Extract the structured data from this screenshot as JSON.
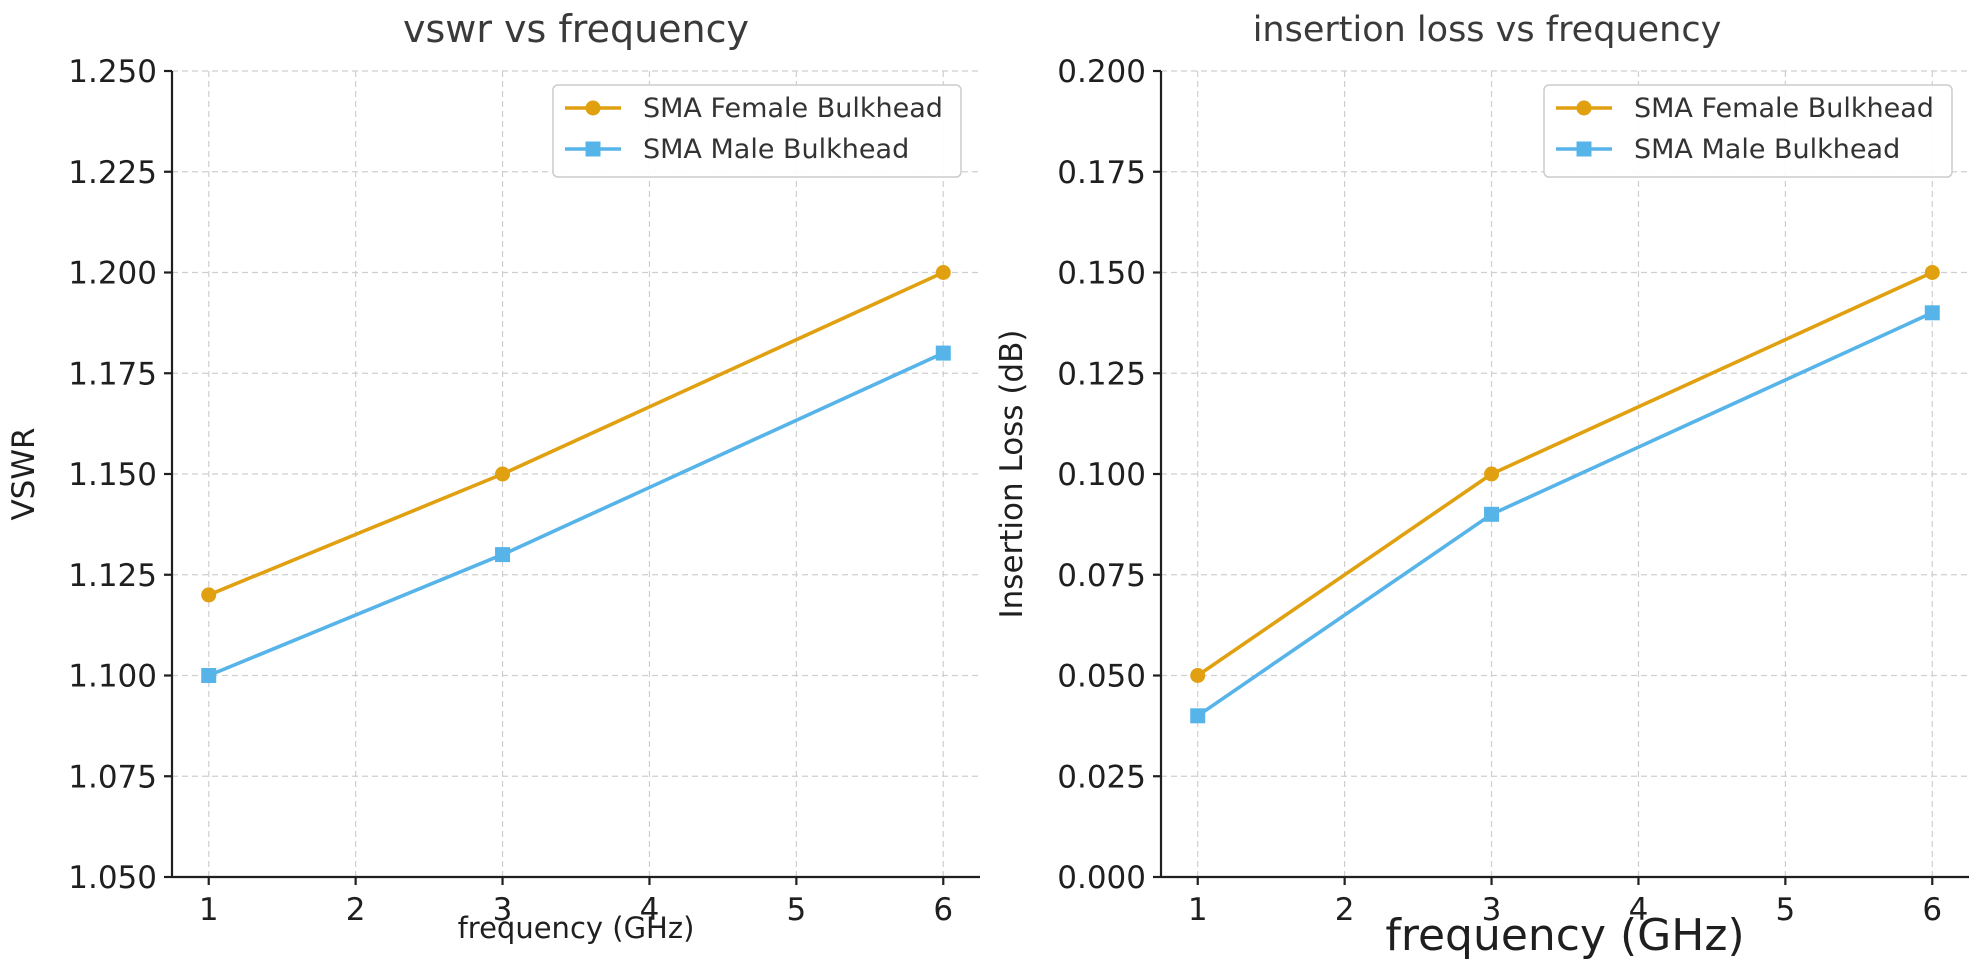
{
  "chart_data": [
    {
      "type": "line",
      "title": "vswr vs frequency",
      "xlabel": "frequency (GHz)",
      "ylabel": "VSWR",
      "x": [
        1,
        3,
        6
      ],
      "xlim": [
        0.75,
        6.25
      ],
      "ylim": [
        1.05,
        1.25
      ],
      "xticks": [
        "1",
        "2",
        "3",
        "4",
        "5",
        "6"
      ],
      "yticks": [
        "1.050",
        "1.075",
        "1.100",
        "1.125",
        "1.150",
        "1.175",
        "1.200",
        "1.225",
        "1.250"
      ],
      "grid": true,
      "legend_position": "top-right",
      "series": [
        {
          "name": "SMA Female Bulkhead",
          "values": [
            1.12,
            1.15,
            1.2
          ],
          "color": "#E0A010",
          "marker": "circle"
        },
        {
          "name": "SMA Male Bulkhead",
          "values": [
            1.1,
            1.13,
            1.18
          ],
          "color": "#56B4E9",
          "marker": "square"
        }
      ]
    },
    {
      "type": "line",
      "title": "insertion loss vs frequency",
      "xlabel": "frequency (GHz)",
      "ylabel": "Insertion Loss (dB)",
      "x": [
        1,
        3,
        6
      ],
      "xlim": [
        0.75,
        6.25
      ],
      "ylim": [
        0.0,
        0.2
      ],
      "xticks": [
        "1",
        "2",
        "3",
        "4",
        "5",
        "6"
      ],
      "yticks": [
        "0.000",
        "0.025",
        "0.050",
        "0.075",
        "0.100",
        "0.125",
        "0.150",
        "0.175",
        "0.200"
      ],
      "grid": true,
      "legend_position": "top-right",
      "series": [
        {
          "name": "SMA Female Bulkhead",
          "values": [
            0.05,
            0.1,
            0.15
          ],
          "color": "#E0A010",
          "marker": "circle"
        },
        {
          "name": "SMA Male Bulkhead",
          "values": [
            0.04,
            0.09,
            0.14
          ],
          "color": "#56B4E9",
          "marker": "square"
        }
      ]
    }
  ]
}
